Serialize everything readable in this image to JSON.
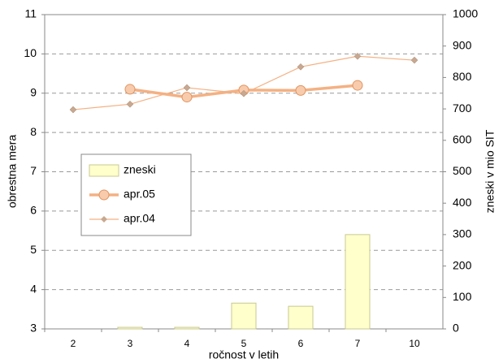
{
  "chart_data": {
    "type": "bar-line",
    "categories": [
      "2",
      "3",
      "4",
      "5",
      "6",
      "7",
      "10"
    ],
    "x_label": "ročnost v letih",
    "y_label": "obrestna mera",
    "y2_label": "zneski v mio SIT",
    "ylim": [
      3,
      11
    ],
    "yticks": [
      3,
      4,
      5,
      6,
      7,
      8,
      9,
      10,
      11
    ],
    "y2lim": [
      0,
      1000
    ],
    "y2ticks": [
      0,
      100,
      200,
      300,
      400,
      500,
      600,
      700,
      800,
      900,
      1000
    ],
    "grid": true,
    "series": [
      {
        "name": "zneski",
        "type": "bar",
        "axis": "y2",
        "color": "#ffffcc",
        "values": [
          0,
          5,
          5,
          82,
          72,
          300,
          0
        ]
      },
      {
        "name": "apr.05",
        "type": "line",
        "color": "#f4b183",
        "values": [
          null,
          9.1,
          8.9,
          9.08,
          9.07,
          9.2,
          null
        ]
      },
      {
        "name": "apr.04",
        "type": "line",
        "color": "#f4b183",
        "values": [
          8.58,
          8.72,
          9.14,
          8.99,
          9.67,
          9.94,
          9.84
        ]
      }
    ]
  }
}
